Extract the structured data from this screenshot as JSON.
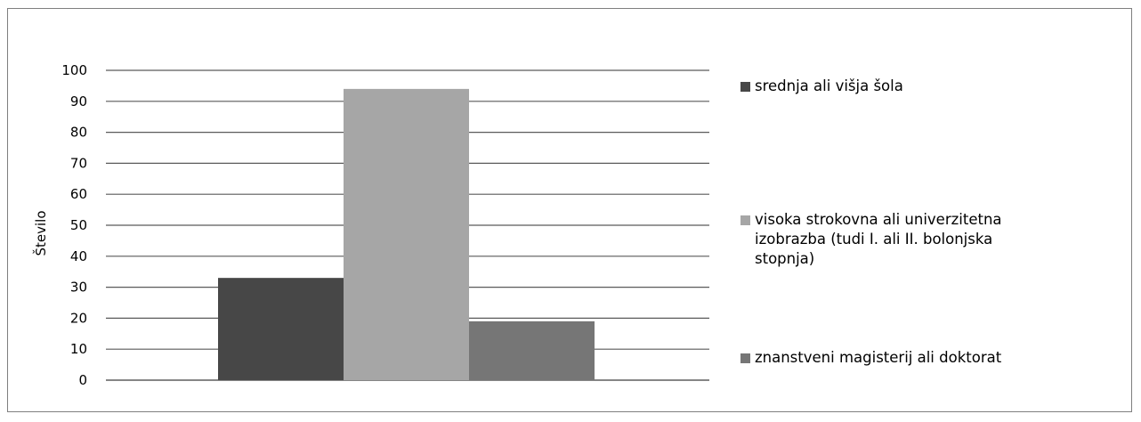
{
  "chart_data": {
    "type": "bar",
    "title": "",
    "xlabel": "",
    "ylabel": "Število",
    "ylim": [
      0,
      100
    ],
    "yticks": [
      0,
      10,
      20,
      30,
      40,
      50,
      60,
      70,
      80,
      90,
      100
    ],
    "grid": true,
    "legend_position": "right",
    "categories": [
      ""
    ],
    "series": [
      {
        "name": "srednja ali višja šola",
        "values": [
          33
        ],
        "color": "#474747"
      },
      {
        "name": "visoka strokovna ali univerzitetna\nizobrazba (tudi I. ali II. bolonjska\nstopnja)",
        "values": [
          94
        ],
        "color": "#a6a6a6"
      },
      {
        "name": "znanstveni magisterij ali doktorat",
        "values": [
          19
        ],
        "color": "#767676"
      }
    ]
  }
}
